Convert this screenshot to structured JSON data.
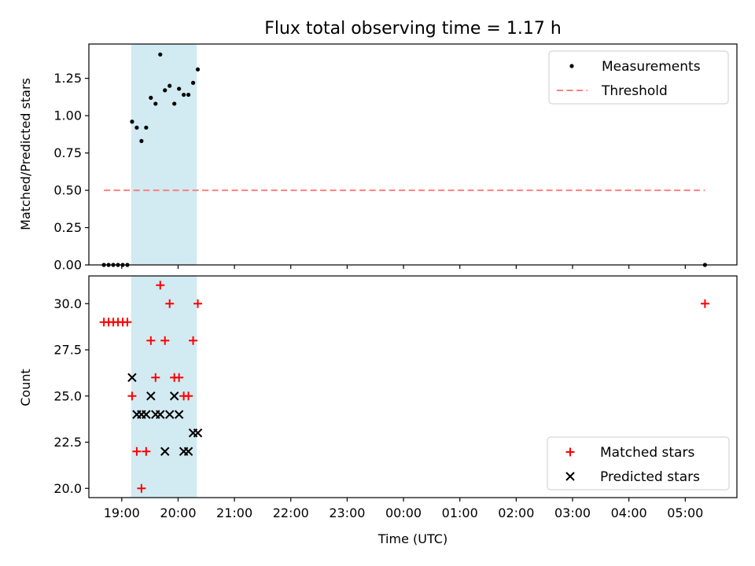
{
  "chart_data": [
    {
      "type": "scatter",
      "title": "Flux total observing time = 1.17 h",
      "xlabel": "",
      "ylabel": "Matched/Predicted stars",
      "ylim": [
        0,
        1.48
      ],
      "yticks": [
        "0.00",
        "0.25",
        "0.50",
        "0.75",
        "1.00",
        "1.25"
      ],
      "xlim": [
        "18:25",
        "05:55"
      ],
      "shaded_span": [
        "19:10",
        "20:20"
      ],
      "shade_color": "#add8e6",
      "legend_position": "upper right",
      "series": [
        {
          "name": "Measurements",
          "marker": "dot",
          "color": "#000000",
          "x": [
            "18:41",
            "18:46",
            "18:51",
            "18:56",
            "19:01",
            "19:06",
            "19:11",
            "19:16",
            "19:21",
            "19:26",
            "19:31",
            "19:36",
            "19:41",
            "19:46",
            "19:51",
            "19:56",
            "20:01",
            "20:06",
            "20:11",
            "20:16",
            "20:21",
            "05:21"
          ],
          "values": [
            0,
            0,
            0,
            0,
            0,
            0,
            0.96,
            0.92,
            0.83,
            0.92,
            1.12,
            1.08,
            1.41,
            1.17,
            1.2,
            1.08,
            1.18,
            1.14,
            1.14,
            1.22,
            1.31,
            0
          ]
        },
        {
          "name": "Threshold",
          "style": "dashed",
          "color": "#ff7f7f",
          "x": [
            "18:41",
            "05:21"
          ],
          "values": [
            0.5,
            0.5
          ]
        }
      ]
    },
    {
      "type": "scatter",
      "xlabel": "Time (UTC)",
      "ylabel": "Count",
      "ylim": [
        19.5,
        31.5
      ],
      "yticks": [
        "20.0",
        "22.5",
        "25.0",
        "27.5",
        "30.0"
      ],
      "xlim": [
        "18:25",
        "05:55"
      ],
      "xticks": [
        "19:00",
        "20:00",
        "21:00",
        "22:00",
        "23:00",
        "00:00",
        "01:00",
        "02:00",
        "03:00",
        "04:00",
        "05:00"
      ],
      "shaded_span": [
        "19:10",
        "20:20"
      ],
      "shade_color": "#add8e6",
      "legend_position": "lower right",
      "series": [
        {
          "name": "Matched stars",
          "marker": "plus",
          "color": "#ff0000",
          "x": [
            "18:41",
            "18:46",
            "18:51",
            "18:56",
            "19:01",
            "19:06",
            "19:11",
            "19:16",
            "19:21",
            "19:26",
            "19:31",
            "19:36",
            "19:41",
            "19:46",
            "19:51",
            "19:56",
            "20:01",
            "20:06",
            "20:11",
            "20:16",
            "20:21",
            "05:21"
          ],
          "values": [
            29,
            29,
            29,
            29,
            29,
            29,
            25,
            22,
            20,
            22,
            28,
            26,
            31,
            28,
            30,
            26,
            26,
            25,
            25,
            28,
            30,
            30
          ]
        },
        {
          "name": "Predicted stars",
          "marker": "x",
          "color": "#000000",
          "x": [
            "19:11",
            "19:16",
            "19:21",
            "19:26",
            "19:31",
            "19:36",
            "19:41",
            "19:46",
            "19:51",
            "19:56",
            "20:01",
            "20:06",
            "20:11",
            "20:16",
            "20:21"
          ],
          "values": [
            26,
            24,
            24,
            24,
            25,
            24,
            24,
            22,
            24,
            25,
            24,
            22,
            22,
            23,
            23
          ]
        }
      ]
    }
  ]
}
